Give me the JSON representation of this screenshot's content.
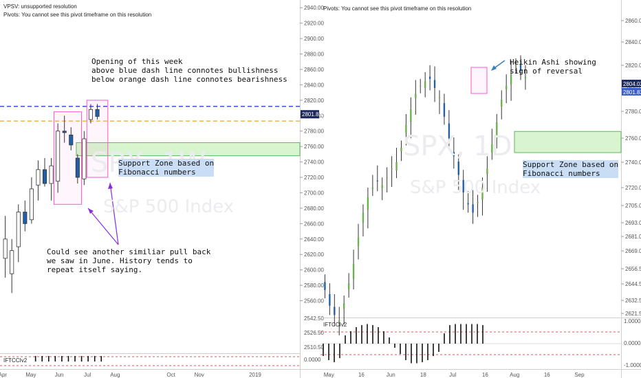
{
  "left_panel": {
    "info_lines": [
      "VPSV: unsupported resolution",
      "Pivots: You cannot see this pivot timeframe on this resolution"
    ],
    "watermark": {
      "symbol": "SPX, 1W",
      "name": "S&P 500 Index"
    },
    "annotations": {
      "week_note": "Opening of this week\nabove blue dash line connotes bullishness\nbelow orange dash line connotes bearishness",
      "support_zone": "Support Zone based on\nFibonacci numbers",
      "pullback_note": "Could see another similiar pull back\nwe saw in June. History tends to\nrepeat itself saying."
    },
    "price_labels": {
      "last": "2801.83"
    },
    "oscillator": {
      "title": "IFTCCIv2",
      "ticks": [
        "2542.50",
        "2526.50",
        "2510.50",
        "0.0000"
      ]
    }
  },
  "right_panel": {
    "info_lines": [
      "Pivots: You cannot see this pivot timeframe on this resolution"
    ],
    "watermark": {
      "symbol": "SPX, 1D",
      "name": "S&P 500 Index"
    },
    "annotations": {
      "heikin_note": "Heikin Ashi showing\nsign of reversal",
      "support_zone": "Support Zone based on\nFibonacci numbers"
    },
    "price_labels": {
      "last_a": "2804.02",
      "last_b": "2801.83"
    },
    "oscillator": {
      "title": "IFTCCIv2",
      "ticks": [
        "1.0000",
        "0.0000",
        "-1.0000"
      ]
    }
  },
  "colors": {
    "bull": "#6ab04c",
    "bear": "#1f5ea8",
    "blue_dash": "#2d3fd8",
    "orange_dash": "#f0a22a",
    "zone_fill": "#d8f5d0",
    "zone_border": "#5cb85c",
    "highlight_box": "#ff55cc",
    "arrow_purple": "#8a2be2",
    "arrow_blue": "#3a7ec0"
  },
  "chart_data": [
    {
      "type": "candlestick",
      "timeframe": "1W",
      "symbol": "SPX",
      "y_ticks": [
        "2940.00",
        "2920.00",
        "2900.00",
        "2880.00",
        "2860.00",
        "2840.00",
        "2820.00",
        "2800.00",
        "2780.00",
        "2760.00",
        "2740.00",
        "2720.00",
        "2700.00",
        "2680.00",
        "2660.00",
        "2640.00",
        "2620.00",
        "2600.00",
        "2580.00",
        "2560.00"
      ],
      "ylim": [
        2540,
        2950
      ],
      "x_ticks": [
        "Apr",
        "May",
        "Jun",
        "Jul",
        "Aug",
        "Oct",
        "Nov",
        "2019"
      ],
      "x_positions": [
        -0.4,
        3.9,
        8.2,
        12.5,
        16.7,
        25.2,
        29.5,
        38.0
      ],
      "xlim": [
        -0.8,
        44.8
      ],
      "candles": [
        [
          0,
          2615,
          2670,
          2640,
          2590
        ],
        [
          1,
          2595,
          2640,
          2625,
          2570
        ],
        [
          2,
          2630,
          2685,
          2675,
          2610
        ],
        [
          3,
          2675,
          2690,
          2660,
          2650
        ],
        [
          4,
          2665,
          2720,
          2705,
          2660
        ],
        [
          5,
          2710,
          2742,
          2730,
          2690
        ],
        [
          6,
          2730,
          2745,
          2712,
          2708
        ],
        [
          7,
          2712,
          2745,
          2735,
          2690
        ],
        [
          8,
          2715,
          2790,
          2780,
          2700
        ],
        [
          9,
          2780,
          2800,
          2778,
          2765
        ],
        [
          10,
          2775,
          2785,
          2762,
          2755
        ],
        [
          11,
          2745,
          2750,
          2720,
          2712
        ],
        [
          12,
          2718,
          2780,
          2770,
          2710
        ],
        [
          13,
          2795,
          2815,
          2808,
          2790
        ],
        [
          14,
          2808,
          2815,
          2799,
          2795
        ]
      ],
      "levels": {
        "blue_dash": 2812,
        "orange_dash": 2793,
        "last_price": 2801.83
      },
      "support_zone": [
        2748,
        2765
      ]
    },
    {
      "type": "heikin_ashi",
      "timeframe": "1D",
      "symbol": "SPX",
      "y_ticks": [
        "2860.00",
        "2840.00",
        "2820.00",
        "2800.00",
        "2780.00",
        "2760.00",
        "2740.00",
        "2720.00",
        "2705.00",
        "2693.00",
        "2681.00",
        "2669.00",
        "2656.50",
        "2644.50",
        "2632.50",
        "2621.50"
      ],
      "x_ticks": [
        "May",
        "16",
        "Jun",
        "18",
        "Jul",
        "16",
        "Aug",
        "16",
        "Sep"
      ],
      "x_positions": [
        0,
        11,
        21,
        32,
        42,
        53,
        63,
        74,
        85
      ],
      "xlim": [
        -1,
        101
      ],
      "trend_closes": [
        2640,
        2628,
        2620,
        2615,
        2630,
        2645,
        2660,
        2680,
        2700,
        2712,
        2720,
        2725,
        2722,
        2728,
        2735,
        2740,
        2752,
        2770,
        2782,
        2795,
        2802,
        2806,
        2808,
        2800,
        2792,
        2776,
        2760,
        2745,
        2730,
        2716,
        2706,
        2700,
        2708,
        2720,
        2735,
        2755,
        2772,
        2790,
        2802,
        2812,
        2820,
        2815,
        2810
      ],
      "levels": {
        "last_a": 2804.02,
        "last_b": 2801.83
      },
      "support_zone": [
        2748,
        2765
      ]
    }
  ]
}
